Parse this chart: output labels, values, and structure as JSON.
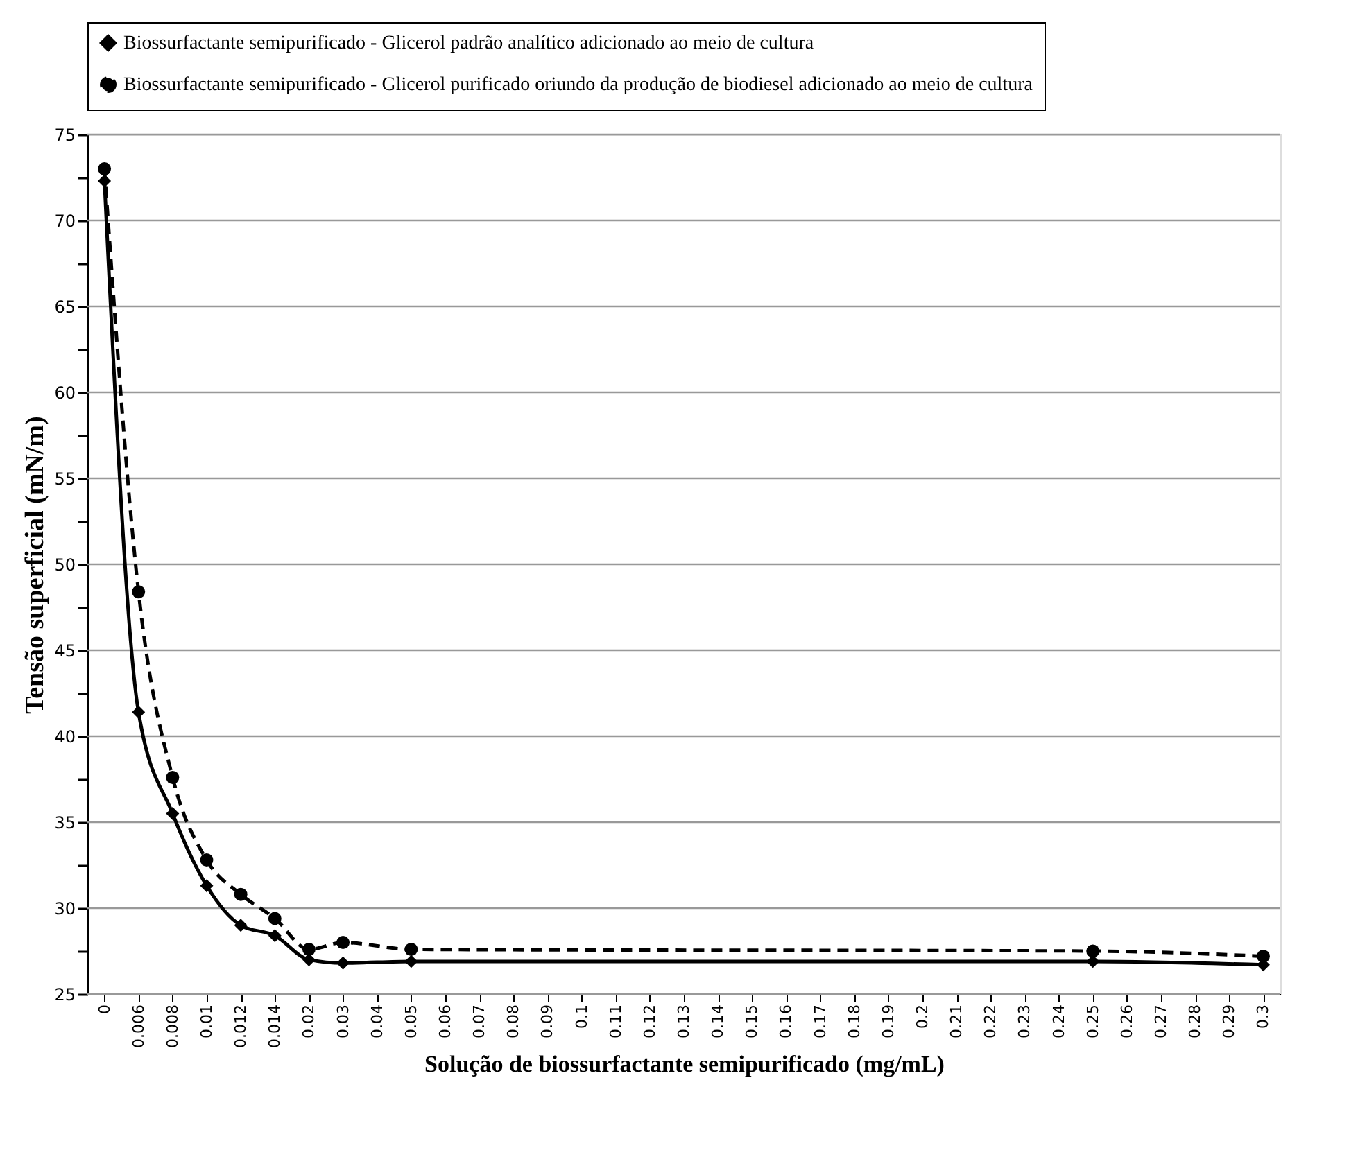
{
  "chart_data": {
    "type": "line",
    "xlabel": "Solução de biossurfactante semipurificado (mg/mL)",
    "ylabel": "Tensão superficial  (mN/m)",
    "categories": [
      "0",
      "0.006",
      "0.008",
      "0.01",
      "0.012",
      "0.014",
      "0.02",
      "0.03",
      "0.04",
      "0.05",
      "0.06",
      "0.07",
      "0.08",
      "0.09",
      "0.1",
      "0.11",
      "0.12",
      "0.13",
      "0.14",
      "0.15",
      "0.16",
      "0.17",
      "0.18",
      "0.19",
      "0.2",
      "0.21",
      "0.22",
      "0.23",
      "0.24",
      "0.25",
      "0.26",
      "0.27",
      "0.28",
      "0.29",
      "0.3"
    ],
    "series": [
      {
        "name": "Biossurfactante semipurificado - Glicerol padrão analítico adicionado ao meio de cultura",
        "color": "#000000",
        "marker": "diamond",
        "line_style": "solid",
        "values": [
          72.3,
          41.4,
          35.5,
          31.3,
          29.0,
          28.4,
          27.0,
          26.8,
          null,
          26.9,
          null,
          null,
          null,
          null,
          null,
          null,
          null,
          null,
          null,
          null,
          null,
          null,
          null,
          null,
          null,
          null,
          null,
          null,
          null,
          26.9,
          null,
          null,
          null,
          null,
          26.7
        ]
      },
      {
        "name": "Biossurfactante semipurificado - Glicerol purificado oriundo da produção de biodiesel adicionado ao meio de cultura",
        "color": "#000000",
        "marker": "circle",
        "line_style": "dashed",
        "values": [
          73.0,
          48.4,
          37.6,
          32.8,
          30.8,
          29.4,
          27.6,
          28.0,
          null,
          27.6,
          null,
          null,
          null,
          null,
          null,
          null,
          null,
          null,
          null,
          null,
          null,
          null,
          null,
          null,
          null,
          null,
          null,
          null,
          null,
          27.5,
          null,
          null,
          null,
          null,
          27.2
        ]
      }
    ],
    "ylim": [
      25,
      75
    ],
    "yticks": [
      25,
      {
        "value": 27.5,
        "label": null
      },
      30,
      {
        "value": 32.5,
        "label": null
      },
      35,
      {
        "value": 37.5,
        "label": null
      },
      40,
      {
        "value": 42.5,
        "label": null
      },
      45,
      {
        "value": 47.5,
        "label": null
      },
      50,
      {
        "value": 52.5,
        "label": null
      },
      55,
      {
        "value": 57.5,
        "label": null
      },
      60,
      {
        "value": 62.5,
        "label": null
      },
      65,
      {
        "value": 67.5,
        "label": null
      },
      70,
      {
        "value": 72.5,
        "label": null
      },
      75
    ],
    "grid": "y",
    "legend": "top"
  }
}
